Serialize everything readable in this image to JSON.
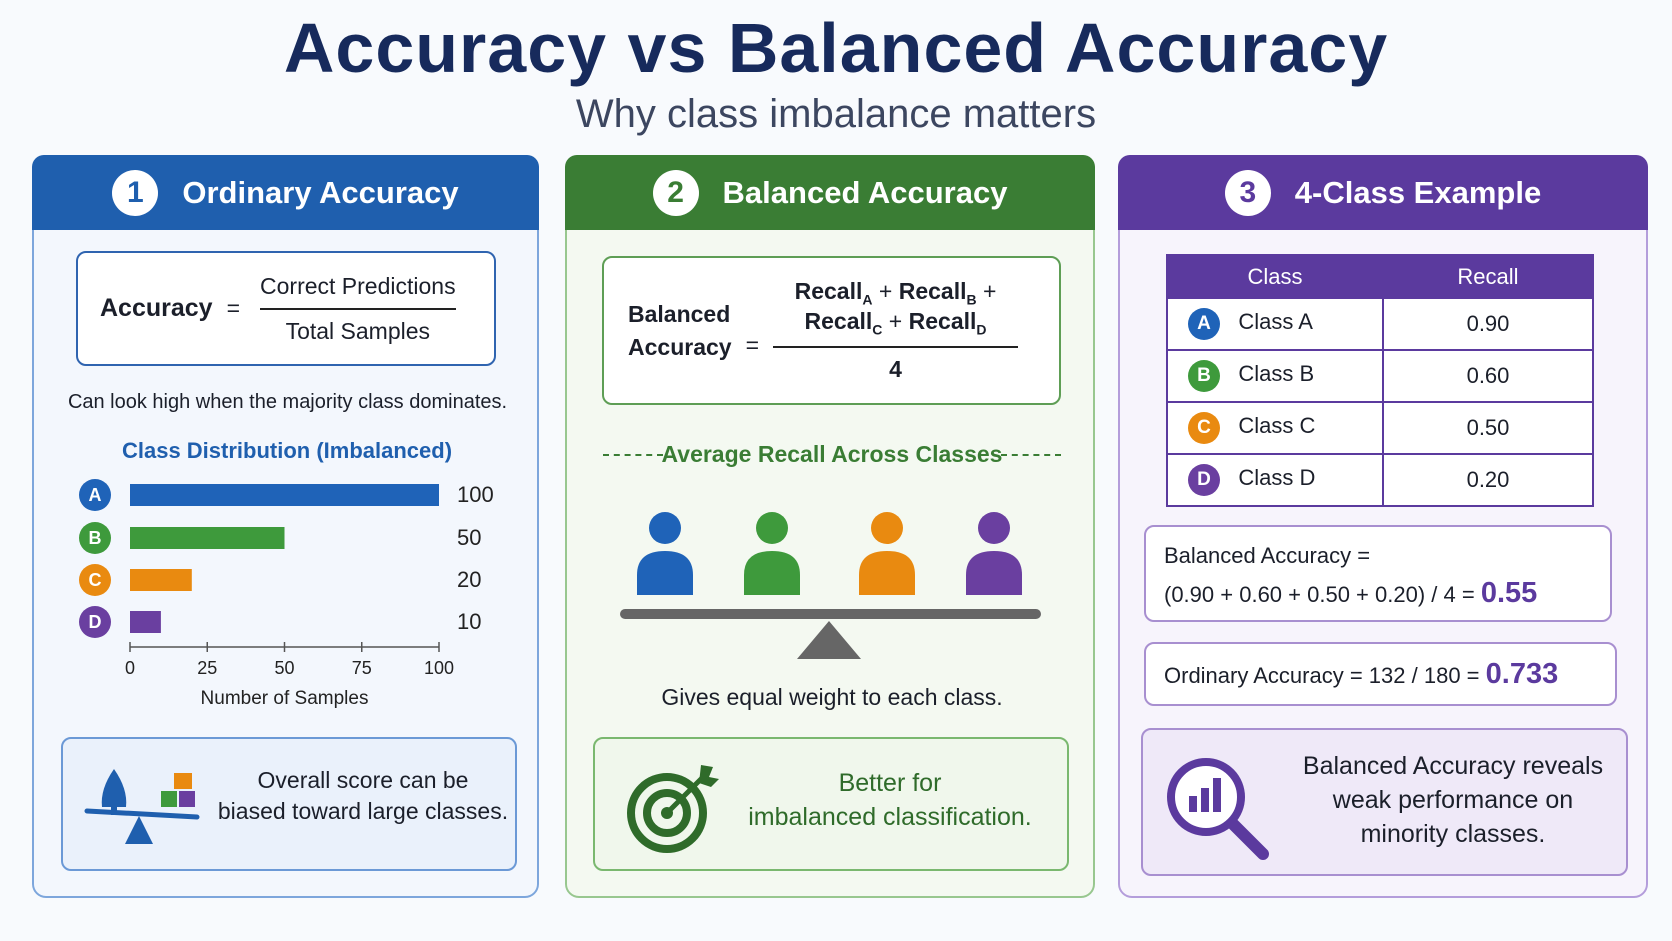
{
  "header": {
    "title": "Accuracy vs Balanced Accuracy",
    "subtitle": "Why class imbalance matters"
  },
  "panels": [
    {
      "number": "1",
      "title": "Ordinary Accuracy",
      "formula": {
        "lhs": "Accuracy",
        "equals": "=",
        "numerator": "Correct Predictions",
        "denominator": "Total Samples"
      },
      "caption": "Can look high when the majority class dominates.",
      "note": [
        "Overall score can be",
        "biased toward large classes."
      ]
    },
    {
      "number": "2",
      "title": "Balanced Accuracy",
      "formula": {
        "lhs": [
          "Balanced",
          "Accuracy"
        ],
        "equals": "=",
        "terms": [
          {
            "name": "Recall",
            "sub": "A"
          },
          {
            "name": "Recall",
            "sub": "B"
          },
          {
            "name": "Recall",
            "sub": "C"
          },
          {
            "name": "Recall",
            "sub": "D"
          }
        ],
        "plus": "+",
        "denominator": "4"
      },
      "divider": "Average Recall Across Classes",
      "caption": "Gives equal weight to each class.",
      "note": [
        "Better for",
        "imbalanced classification."
      ]
    },
    {
      "number": "3",
      "title": "4-Class Example",
      "table": {
        "header": [
          "Class",
          "Recall"
        ],
        "rows": [
          [
            "A",
            "Class A",
            "0.90"
          ],
          [
            "B",
            "Class B",
            "0.60"
          ],
          [
            "C",
            "Class C",
            "0.50"
          ],
          [
            "D",
            "Class D",
            "0.20"
          ]
        ]
      },
      "balanced": {
        "label": "Balanced Accuracy =",
        "expression": "(0.90 + 0.60 + 0.50 + 0.20) / 4 =",
        "result": "0.55"
      },
      "ordinary": {
        "expression": "Ordinary Accuracy = 132 / 180 =",
        "result": "0.733"
      },
      "note": [
        "Balanced Accuracy reveals",
        "weak performance on",
        "minority classes."
      ]
    }
  ],
  "chart_data": {
    "type": "bar",
    "orientation": "horizontal",
    "title": "Class Distribution (Imbalanced)",
    "categories": [
      "A",
      "B",
      "C",
      "D"
    ],
    "values": [
      100,
      50,
      20,
      10
    ],
    "colors": [
      "#1f63b8",
      "#3e9a3c",
      "#e98a10",
      "#6a3fa0"
    ],
    "xlim": [
      0,
      100
    ],
    "xticks": [
      0,
      25,
      50,
      75,
      100
    ],
    "xlabel": "Number of Samples"
  }
}
